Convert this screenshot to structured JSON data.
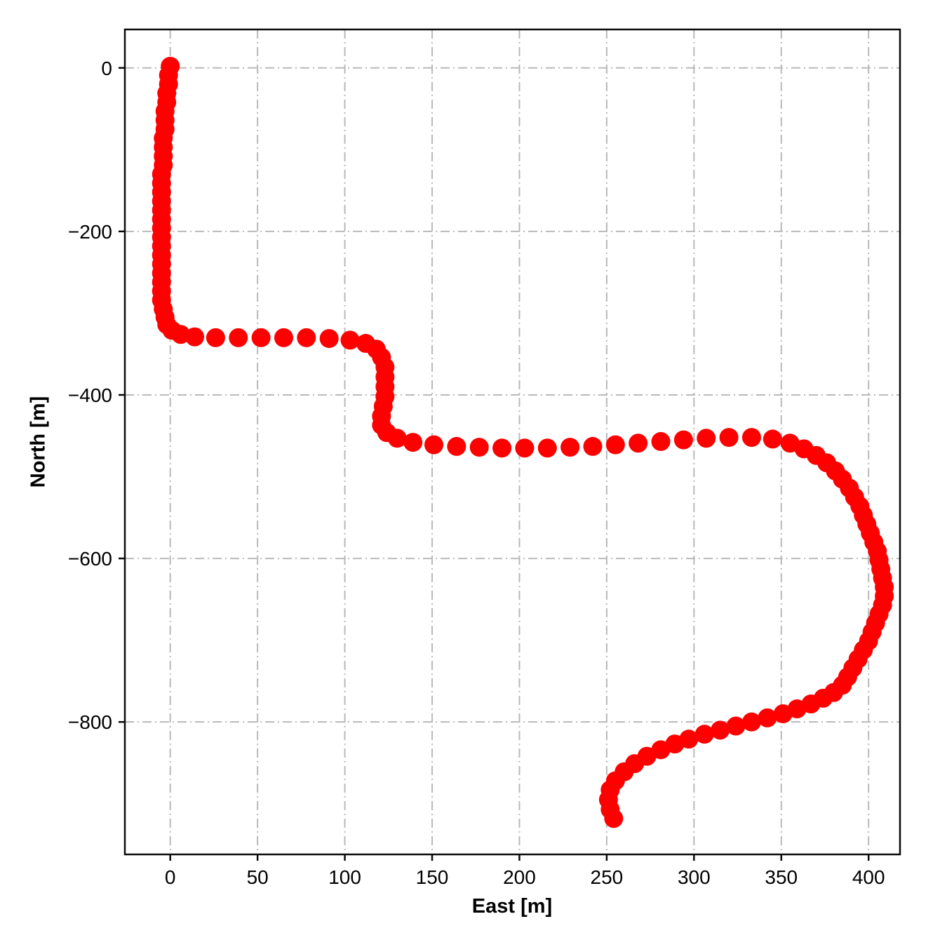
{
  "figure": {
    "background_color": "#ffffff",
    "axis_color": "#0a0a0a",
    "grid_color": "#b9b9b9",
    "tick_label_color": "#000000"
  },
  "chart_data": {
    "type": "scatter",
    "title": "",
    "xlabel": "East [m]",
    "ylabel": "North [m]",
    "xlim": [
      -26,
      418
    ],
    "ylim": [
      -962,
      47
    ],
    "x_ticks": [
      0,
      50,
      100,
      150,
      200,
      250,
      300,
      350,
      400
    ],
    "y_ticks": [
      0,
      -200,
      -400,
      -600,
      -800
    ],
    "x_tick_labels": [
      "0",
      "50",
      "100",
      "150",
      "200",
      "250",
      "300",
      "350",
      "400"
    ],
    "y_tick_labels": [
      "0",
      "−200",
      "−400",
      "−600",
      "−800"
    ],
    "grid": true,
    "grid_style": "dash-dot",
    "legend": "none",
    "series": [
      {
        "name": "trajectory",
        "marker": "circle",
        "marker_color": "#ff0000",
        "marker_radius_px": 13.5,
        "points": [
          [
            0,
            2
          ],
          [
            -1,
            -9
          ],
          [
            -1,
            -20
          ],
          [
            -2,
            -31
          ],
          [
            -2,
            -42
          ],
          [
            -3,
            -53
          ],
          [
            -3,
            -64
          ],
          [
            -3,
            -75
          ],
          [
            -4,
            -86
          ],
          [
            -4,
            -97
          ],
          [
            -4,
            -108
          ],
          [
            -4,
            -119
          ],
          [
            -5,
            -130
          ],
          [
            -5,
            -141
          ],
          [
            -5,
            -152
          ],
          [
            -5,
            -163
          ],
          [
            -5,
            -174
          ],
          [
            -5,
            -185
          ],
          [
            -5,
            -196
          ],
          [
            -5,
            -207
          ],
          [
            -5,
            -218
          ],
          [
            -5,
            -229
          ],
          [
            -5,
            -240
          ],
          [
            -5,
            -251
          ],
          [
            -5,
            -262
          ],
          [
            -5,
            -273
          ],
          [
            -5,
            -284
          ],
          [
            -4,
            -295
          ],
          [
            -3,
            -305
          ],
          [
            -2,
            -314
          ],
          [
            1,
            -321
          ],
          [
            6,
            -326
          ],
          [
            14,
            -329
          ],
          [
            26,
            -330
          ],
          [
            39,
            -330
          ],
          [
            52,
            -330
          ],
          [
            65,
            -330
          ],
          [
            78,
            -330
          ],
          [
            91,
            -331
          ],
          [
            103,
            -333
          ],
          [
            112,
            -337
          ],
          [
            118,
            -344
          ],
          [
            121,
            -354
          ],
          [
            123,
            -366
          ],
          [
            123,
            -378
          ],
          [
            123,
            -390
          ],
          [
            123,
            -402
          ],
          [
            122,
            -414
          ],
          [
            121,
            -426
          ],
          [
            121,
            -437
          ],
          [
            124,
            -446
          ],
          [
            130,
            -453
          ],
          [
            139,
            -458
          ],
          [
            151,
            -461
          ],
          [
            164,
            -463
          ],
          [
            177,
            -464
          ],
          [
            190,
            -465
          ],
          [
            203,
            -465
          ],
          [
            216,
            -465
          ],
          [
            229,
            -464
          ],
          [
            242,
            -463
          ],
          [
            255,
            -461
          ],
          [
            268,
            -459
          ],
          [
            281,
            -457
          ],
          [
            294,
            -455
          ],
          [
            307,
            -453
          ],
          [
            320,
            -452
          ],
          [
            333,
            -452
          ],
          [
            345,
            -454
          ],
          [
            355,
            -459
          ],
          [
            363,
            -466
          ],
          [
            370,
            -474
          ],
          [
            376,
            -483
          ],
          [
            381,
            -493
          ],
          [
            385,
            -503
          ],
          [
            389,
            -514
          ],
          [
            392,
            -525
          ],
          [
            395,
            -536
          ],
          [
            397,
            -547
          ],
          [
            399,
            -558
          ],
          [
            401,
            -569
          ],
          [
            403,
            -580
          ],
          [
            405,
            -591
          ],
          [
            406,
            -602
          ],
          [
            407,
            -613
          ],
          [
            408,
            -624
          ],
          [
            409,
            -635
          ],
          [
            409,
            -646
          ],
          [
            408,
            -657
          ],
          [
            406,
            -668
          ],
          [
            404,
            -679
          ],
          [
            402,
            -690
          ],
          [
            400,
            -701
          ],
          [
            397,
            -712
          ],
          [
            394,
            -723
          ],
          [
            391,
            -734
          ],
          [
            388,
            -745
          ],
          [
            385,
            -755
          ],
          [
            380,
            -764
          ],
          [
            374,
            -771
          ],
          [
            367,
            -778
          ],
          [
            359,
            -784
          ],
          [
            351,
            -790
          ],
          [
            342,
            -795
          ],
          [
            333,
            -800
          ],
          [
            324,
            -805
          ],
          [
            315,
            -810
          ],
          [
            306,
            -815
          ],
          [
            297,
            -821
          ],
          [
            289,
            -827
          ],
          [
            281,
            -834
          ],
          [
            273,
            -842
          ],
          [
            266,
            -851
          ],
          [
            260,
            -861
          ],
          [
            255,
            -872
          ],
          [
            252,
            -883
          ],
          [
            251,
            -895
          ],
          [
            252,
            -907
          ],
          [
            254,
            -918
          ]
        ]
      }
    ]
  }
}
